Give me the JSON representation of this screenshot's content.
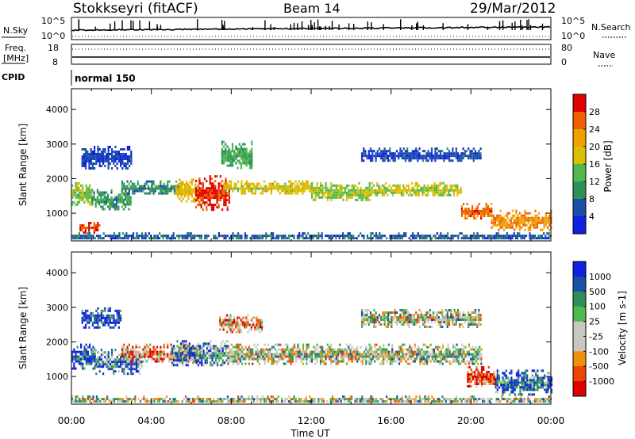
{
  "header": {
    "station": "Stokkseyri (fitACF)",
    "beam": "Beam 14",
    "date": "29/Mar/2012"
  },
  "panels": {
    "nsky": {
      "left_label": "N.Sky",
      "ticks_left": [
        "10^5",
        "10^0"
      ],
      "ticks_right": [
        "10^5",
        "10^0"
      ],
      "right_label": "N.Search"
    },
    "freq": {
      "left_label_line1": "Freq.",
      "left_label_line2": "[MHz]",
      "ticks_left": [
        "18",
        "8"
      ],
      "ticks_right": [
        "80",
        "0"
      ],
      "right_label": "Nave"
    },
    "cpid": {
      "left_label": "CPID",
      "value": "normal 150"
    }
  },
  "chart_data": [
    {
      "type": "heatmap",
      "name": "power",
      "ylabel": "Slant Range [km]",
      "xlabel": "Time UT",
      "x_ticks": [
        "00:00",
        "04:00",
        "08:00",
        "12:00",
        "16:00",
        "20:00",
        "00:00"
      ],
      "y_ticks": [
        "1000",
        "2000",
        "3000",
        "4000"
      ],
      "ylim": [
        200,
        4600
      ],
      "xlim_hours": [
        0,
        24
      ],
      "colorbar": {
        "label": "Power [dB]",
        "ticks": [
          "4",
          "8",
          "12",
          "16",
          "20",
          "24",
          "28"
        ],
        "range": [
          0,
          30
        ]
      },
      "bands": [
        {
          "t0": 0.0,
          "t1": 1.0,
          "r0": 1250,
          "r1": 1900,
          "level": 14
        },
        {
          "t0": 0.4,
          "t1": 1.4,
          "r0": 450,
          "r1": 750,
          "level": 26
        },
        {
          "t0": 1.0,
          "t1": 3.0,
          "r0": 1100,
          "r1": 1700,
          "level": 10
        },
        {
          "t0": 0.5,
          "t1": 3.0,
          "r0": 2300,
          "r1": 2950,
          "level": 4
        },
        {
          "t0": 2.5,
          "t1": 5.5,
          "r0": 1550,
          "r1": 1950,
          "level": 9
        },
        {
          "t0": 5.2,
          "t1": 6.4,
          "r0": 1350,
          "r1": 2000,
          "level": 18
        },
        {
          "t0": 6.2,
          "t1": 7.9,
          "r0": 1100,
          "r1": 2100,
          "level": 27
        },
        {
          "t0": 7.5,
          "t1": 9.0,
          "r0": 2300,
          "r1": 3100,
          "level": 11
        },
        {
          "t0": 7.6,
          "t1": 12.0,
          "r0": 1550,
          "r1": 1950,
          "level": 17
        },
        {
          "t0": 12.0,
          "t1": 15.0,
          "r0": 1350,
          "r1": 1900,
          "level": 15
        },
        {
          "t0": 15.0,
          "t1": 19.5,
          "r0": 1500,
          "r1": 1900,
          "level": 16
        },
        {
          "t0": 14.5,
          "t1": 20.5,
          "r0": 2500,
          "r1": 2900,
          "level": 5
        },
        {
          "t0": 19.5,
          "t1": 21.0,
          "r0": 850,
          "r1": 1300,
          "level": 24
        },
        {
          "t0": 21.0,
          "t1": 24.0,
          "r0": 500,
          "r1": 1100,
          "level": 22
        },
        {
          "t0": 0.0,
          "t1": 24.0,
          "r0": 250,
          "r1": 450,
          "level": 6
        }
      ]
    },
    {
      "type": "heatmap",
      "name": "velocity",
      "ylabel": "Slant Range [km]",
      "xlabel": "Time UT",
      "x_ticks": [
        "00:00",
        "04:00",
        "08:00",
        "12:00",
        "16:00",
        "20:00",
        "00:00"
      ],
      "y_ticks": [
        "1000",
        "2000",
        "3000",
        "4000"
      ],
      "ylim": [
        200,
        4600
      ],
      "xlim_hours": [
        0,
        24
      ],
      "colorbar": {
        "label": "Velocity [m s-1]",
        "ticks": [
          "1000",
          "500",
          "100",
          "25",
          "-25",
          "-100",
          "-500",
          "-1000"
        ],
        "range": [
          -1000,
          1000
        ]
      },
      "bands": [
        {
          "t0": 0.0,
          "t1": 1.2,
          "r0": 1250,
          "r1": 1950,
          "level": 3
        },
        {
          "t0": 1.2,
          "t1": 3.5,
          "r0": 1100,
          "r1": 1800,
          "level": 2
        },
        {
          "t0": 0.5,
          "t1": 2.5,
          "r0": 2400,
          "r1": 3000,
          "level": 4
        },
        {
          "t0": 2.5,
          "t1": 6.5,
          "r0": 1400,
          "r1": 1950,
          "level": -2
        },
        {
          "t0": 5.0,
          "t1": 7.8,
          "r0": 1300,
          "r1": 2050,
          "level": 2
        },
        {
          "t0": 7.4,
          "t1": 9.5,
          "r0": 2300,
          "r1": 2800,
          "level": -2
        },
        {
          "t0": 7.8,
          "t1": 20.5,
          "r0": 1350,
          "r1": 1950,
          "level": 0
        },
        {
          "t0": 14.5,
          "t1": 20.5,
          "r0": 2450,
          "r1": 2950,
          "level": 0
        },
        {
          "t0": 19.8,
          "t1": 21.2,
          "r0": 700,
          "r1": 1300,
          "level": -3
        },
        {
          "t0": 21.2,
          "t1": 24.0,
          "r0": 500,
          "r1": 1200,
          "level": 3
        },
        {
          "t0": 0.0,
          "t1": 24.0,
          "r0": 250,
          "r1": 450,
          "level": 0
        }
      ]
    }
  ],
  "colors": {
    "power_scale": [
      "#1020e0",
      "#1a4fa8",
      "#2f8f58",
      "#4fb84f",
      "#d8c000",
      "#f0a000",
      "#f06000",
      "#e00000"
    ],
    "velocity_scale": [
      "#e00000",
      "#f04400",
      "#f0900a",
      "#c8c8c0",
      "#c8c8c0",
      "#4fb84f",
      "#2f8f58",
      "#1a4fa8",
      "#1020e0"
    ],
    "gray": "#bdbdb6"
  },
  "axes": {
    "xlabel": "Time UT"
  }
}
